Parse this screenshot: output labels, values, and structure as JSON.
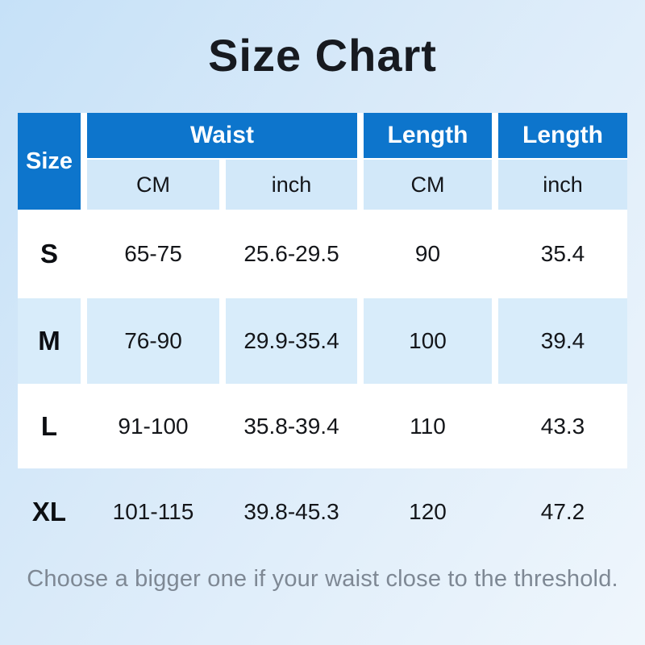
{
  "title": "Size Chart",
  "header": {
    "size_label": "Size",
    "groups": [
      {
        "label": "Waist",
        "span": 2
      },
      {
        "label": "Length",
        "span": 1
      },
      {
        "label": "Length",
        "span": 1
      }
    ],
    "units": [
      "CM",
      "inch",
      "CM",
      "inch"
    ]
  },
  "rows": [
    {
      "size": "S",
      "waist_cm": "65-75",
      "waist_inch": "25.6-29.5",
      "length_cm": "90",
      "length_inch": "35.4"
    },
    {
      "size": "M",
      "waist_cm": "76-90",
      "waist_inch": "29.9-35.4",
      "length_cm": "100",
      "length_inch": "39.4"
    },
    {
      "size": "L",
      "waist_cm": "91-100",
      "waist_inch": "35.8-39.4",
      "length_cm": "110",
      "length_inch": "43.3"
    },
    {
      "size": "XL",
      "waist_cm": "101-115",
      "waist_inch": "39.8-45.3",
      "length_cm": "120",
      "length_inch": "47.2"
    }
  ],
  "footer_note": "Choose a bigger one if your waist close to the threshold.",
  "colors": {
    "header_blue": "#0d75cc",
    "subheader_tint": "#d2e8f9",
    "row_tint": "#d8ecfa",
    "row_white": "#ffffff",
    "title_color": "#171a20",
    "note_color": "#7e8894",
    "background_top_left": "#c6e1f8",
    "background_bottom_right": "#eff6fc"
  },
  "chart_data": {
    "type": "table",
    "title": "Size Chart",
    "columns": [
      "Size",
      "Waist CM",
      "Waist inch",
      "Length CM",
      "Length inch"
    ],
    "rows": [
      [
        "S",
        "65-75",
        "25.6-29.5",
        "90",
        "35.4"
      ],
      [
        "M",
        "76-90",
        "29.9-35.4",
        "100",
        "39.4"
      ],
      [
        "L",
        "91-100",
        "35.8-39.4",
        "110",
        "43.3"
      ],
      [
        "XL",
        "101-115",
        "39.8-45.3",
        "120",
        "47.2"
      ]
    ],
    "footnote": "Choose a bigger one if your waist close to the threshold.",
    "legend_position": "none",
    "grid": false
  }
}
